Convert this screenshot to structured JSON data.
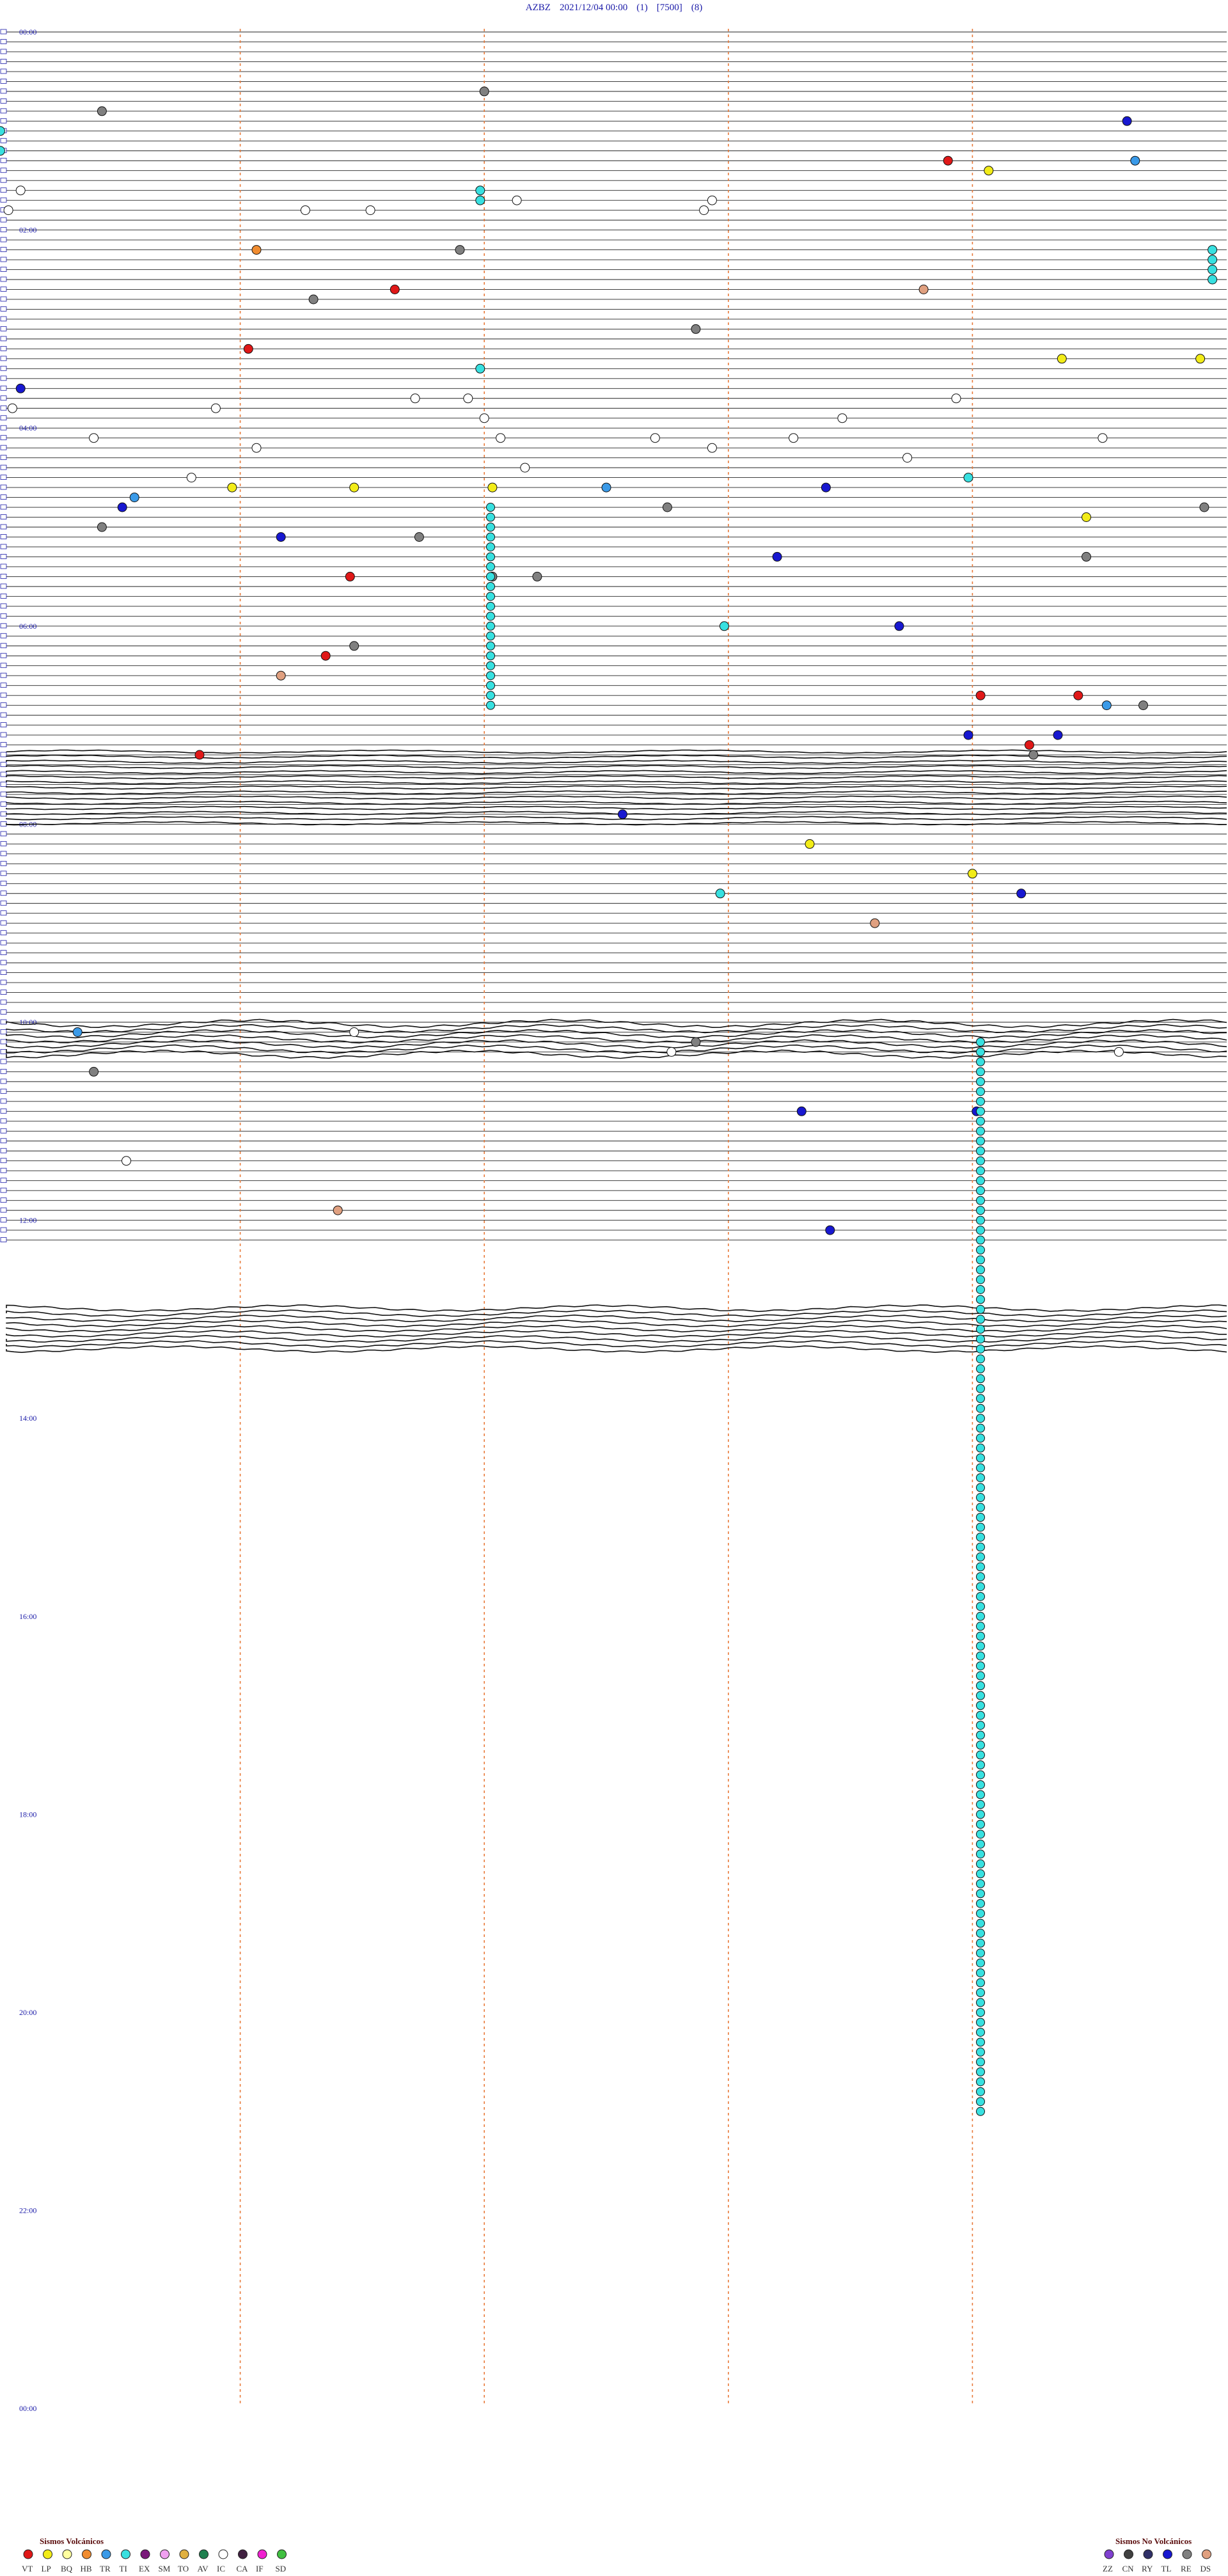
{
  "header": {
    "station": "AZBZ",
    "datetime": "2021/12/04 00:00",
    "p1": "(1)",
    "p2": "[7500]",
    "p3": "(8)"
  },
  "chart_data": {
    "type": "scatter",
    "description_axis": "helicorder",
    "x_range_minutes": [
      0,
      15
    ],
    "row_minutes": 15,
    "rows": 96,
    "hour_labels": [
      "00:00",
      "02:00",
      "04:00",
      "06:00",
      "08:00",
      "10:00",
      "12:00",
      "14:00",
      "16:00",
      "18:00",
      "20:00",
      "22:00",
      "00:00"
    ],
    "categories_volcanic": [
      "VT",
      "LP",
      "BQ",
      "HB",
      "TR",
      "TI",
      "EX",
      "SM",
      "TO",
      "AV",
      "IC",
      "CA",
      "IF",
      "SD"
    ],
    "categories_nonvolcanic": [
      "ZZ",
      "CN",
      "RY",
      "TL",
      "RE",
      "DS"
    ],
    "colors": {
      "VT": "#e01818",
      "LP": "#f2ec18",
      "BQ": "#ffffa0",
      "HB": "#f08c30",
      "TR": "#3a9ae8",
      "TI": "#38e0e0",
      "EX": "#7a1a7a",
      "SM": "#f0a0f0",
      "TO": "#e0b040",
      "AV": "#208050",
      "IC": "#ffffff",
      "CA": "#402040",
      "IF": "#f020d0",
      "SD": "#40c040",
      "ZZ": "#8040d0",
      "CN": "#404040",
      "RY": "#303068",
      "TL": "#1818d0",
      "RE": "#808080",
      "DS": "#e0a080"
    },
    "events": [
      {
        "row": 6,
        "minute": 6.0,
        "type": "RE"
      },
      {
        "row": 8,
        "minute": 1.3,
        "type": "RE"
      },
      {
        "row": 9,
        "minute": 13.9,
        "type": "TL"
      },
      {
        "row": 10,
        "minute": 0.05,
        "type": "TI"
      },
      {
        "row": 13,
        "minute": 14.0,
        "type": "TR"
      },
      {
        "row": 13,
        "minute": 11.7,
        "type": "VT"
      },
      {
        "row": 14,
        "minute": 12.2,
        "type": "LP"
      },
      {
        "row": 12,
        "minute": 0.05,
        "type": "TI"
      },
      {
        "row": 16,
        "minute": 0.3,
        "type": "IC"
      },
      {
        "row": 17,
        "minute": 6.4,
        "type": "IC"
      },
      {
        "row": 17,
        "minute": 8.8,
        "type": "IC"
      },
      {
        "row": 18,
        "minute": 8.7,
        "type": "IC"
      },
      {
        "row": 18,
        "minute": 0.15,
        "type": "IC"
      },
      {
        "row": 18,
        "minute": 3.8,
        "type": "IC"
      },
      {
        "row": 18,
        "minute": 4.6,
        "type": "IC"
      },
      {
        "row": 16,
        "minute": 5.95,
        "type": "TI"
      },
      {
        "row": 17,
        "minute": 5.95,
        "type": "TI"
      },
      {
        "row": 22,
        "minute": 3.2,
        "type": "HB"
      },
      {
        "row": 22,
        "minute": 5.7,
        "type": "RE"
      },
      {
        "row": 22,
        "minute": 14.95,
        "type": "TI"
      },
      {
        "row": 23,
        "minute": 14.95,
        "type": "TI"
      },
      {
        "row": 24,
        "minute": 14.95,
        "type": "TI"
      },
      {
        "row": 25,
        "minute": 14.95,
        "type": "TI"
      },
      {
        "row": 26,
        "minute": 4.9,
        "type": "VT"
      },
      {
        "row": 26,
        "minute": 11.4,
        "type": "DS"
      },
      {
        "row": 27,
        "minute": 3.9,
        "type": "RE"
      },
      {
        "row": 30,
        "minute": 8.6,
        "type": "RE"
      },
      {
        "row": 32,
        "minute": 3.1,
        "type": "VT"
      },
      {
        "row": 34,
        "minute": 5.95,
        "type": "TI"
      },
      {
        "row": 33,
        "minute": 13.1,
        "type": "LP"
      },
      {
        "row": 33,
        "minute": 14.8,
        "type": "LP"
      },
      {
        "row": 36,
        "minute": 0.3,
        "type": "TL"
      },
      {
        "row": 37,
        "minute": 5.15,
        "type": "IC"
      },
      {
        "row": 37,
        "minute": 5.8,
        "type": "IC"
      },
      {
        "row": 38,
        "minute": 0.2,
        "type": "IC"
      },
      {
        "row": 38,
        "minute": 2.7,
        "type": "IC"
      },
      {
        "row": 37,
        "minute": 11.8,
        "type": "IC"
      },
      {
        "row": 39,
        "minute": 6.0,
        "type": "IC"
      },
      {
        "row": 39,
        "minute": 10.4,
        "type": "IC"
      },
      {
        "row": 41,
        "minute": 1.2,
        "type": "IC"
      },
      {
        "row": 41,
        "minute": 6.2,
        "type": "IC"
      },
      {
        "row": 41,
        "minute": 8.1,
        "type": "IC"
      },
      {
        "row": 41,
        "minute": 9.8,
        "type": "IC"
      },
      {
        "row": 41,
        "minute": 13.6,
        "type": "IC"
      },
      {
        "row": 42,
        "minute": 3.2,
        "type": "IC"
      },
      {
        "row": 42,
        "minute": 8.8,
        "type": "IC"
      },
      {
        "row": 43,
        "minute": 11.2,
        "type": "IC"
      },
      {
        "row": 44,
        "minute": 6.5,
        "type": "IC"
      },
      {
        "row": 45,
        "minute": 2.4,
        "type": "IC"
      },
      {
        "row": 45,
        "minute": 11.95,
        "type": "TI"
      },
      {
        "row": 46,
        "minute": 2.9,
        "type": "LP"
      },
      {
        "row": 46,
        "minute": 4.4,
        "type": "LP"
      },
      {
        "row": 46,
        "minute": 6.1,
        "type": "LP"
      },
      {
        "row": 46,
        "minute": 7.5,
        "type": "TR"
      },
      {
        "row": 46,
        "minute": 10.2,
        "type": "TL"
      },
      {
        "row": 47,
        "minute": 1.7,
        "type": "TR"
      },
      {
        "row": 48,
        "minute": 1.55,
        "type": "TL"
      },
      {
        "row": 48,
        "minute": 8.25,
        "type": "RE"
      },
      {
        "row": 48,
        "minute": 14.85,
        "type": "RE"
      },
      {
        "row": 49,
        "minute": 13.4,
        "type": "LP"
      },
      {
        "row": 50,
        "minute": 1.3,
        "type": "RE"
      },
      {
        "row": 51,
        "minute": 3.5,
        "type": "TL"
      },
      {
        "row": 51,
        "minute": 5.2,
        "type": "RE"
      },
      {
        "row": 53,
        "minute": 9.6,
        "type": "TL"
      },
      {
        "row": 53,
        "minute": 13.4,
        "type": "RE"
      },
      {
        "row": 55,
        "minute": 6.1,
        "type": "RE"
      },
      {
        "row": 55,
        "minute": 6.65,
        "type": "RE"
      },
      {
        "row": 55,
        "minute": 4.35,
        "type": "VT"
      },
      {
        "row": 60,
        "minute": 8.95,
        "type": "TI"
      },
      {
        "row": 60,
        "minute": 11.1,
        "type": "TL"
      },
      {
        "row": 62,
        "minute": 4.4,
        "type": "RE"
      },
      {
        "row": 63,
        "minute": 4.05,
        "type": "VT"
      },
      {
        "row": 65,
        "minute": 3.5,
        "type": "DS"
      },
      {
        "row": 67,
        "minute": 12.1,
        "type": "VT"
      },
      {
        "row": 67,
        "minute": 13.3,
        "type": "VT"
      },
      {
        "row": 68,
        "minute": 13.65,
        "type": "TR"
      },
      {
        "row": 68,
        "minute": 14.1,
        "type": "RE"
      },
      {
        "row": 71,
        "minute": 11.95,
        "type": "TL"
      },
      {
        "row": 71,
        "minute": 13.05,
        "type": "TL"
      },
      {
        "row": 72,
        "minute": 12.7,
        "type": "VT"
      },
      {
        "row": 73,
        "minute": 2.5,
        "type": "VT"
      },
      {
        "row": 73,
        "minute": 12.75,
        "type": "RE"
      },
      {
        "row": 79,
        "minute": 7.7,
        "type": "TL"
      },
      {
        "row": 82,
        "minute": 10.0,
        "type": "LP"
      },
      {
        "row": 85,
        "minute": 12.0,
        "type": "LP"
      },
      {
        "row": 87,
        "minute": 8.9,
        "type": "TI"
      },
      {
        "row": 87,
        "minute": 12.6,
        "type": "TL"
      },
      {
        "row": 90,
        "minute": 10.8,
        "type": "DS"
      },
      {
        "row": 101,
        "minute": 1.0,
        "type": "TR"
      },
      {
        "row": 101,
        "minute": 4.4,
        "type": "IC"
      },
      {
        "row": 102,
        "minute": 8.6,
        "type": "RE"
      },
      {
        "row": 103,
        "minute": 8.3,
        "type": "IC"
      },
      {
        "row": 103,
        "minute": 13.8,
        "type": "IC"
      },
      {
        "row": 105,
        "minute": 1.2,
        "type": "RE"
      },
      {
        "row": 109,
        "minute": 9.9,
        "type": "TL"
      },
      {
        "row": 109,
        "minute": 12.05,
        "type": "TL"
      },
      {
        "row": 114,
        "minute": 1.6,
        "type": "IC"
      },
      {
        "row": 119,
        "minute": 4.2,
        "type": "DS"
      },
      {
        "row": 121,
        "minute": 10.25,
        "type": "TL"
      }
    ]
  },
  "legend": {
    "volcanic_title": "Sismos Volcánicos",
    "nonvolcanic_title": "Sismos No Volcánicos"
  }
}
